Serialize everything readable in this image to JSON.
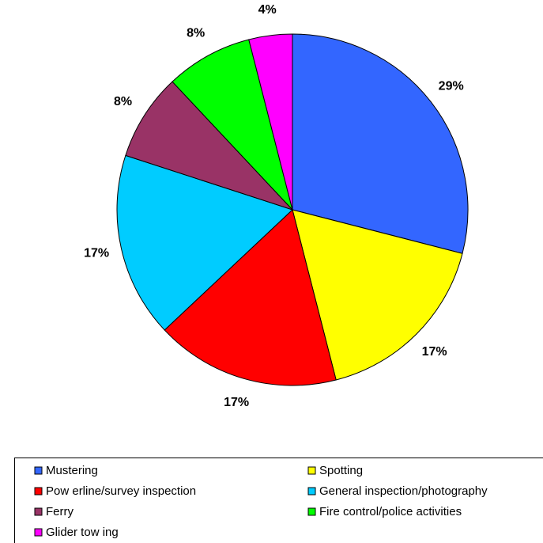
{
  "chart_data": {
    "type": "pie",
    "categories": [
      "Mustering",
      "Spotting",
      "Pow erline/survey inspection",
      "General inspection/photography",
      "Ferry",
      "Fire control/police activities",
      "Glider tow ing"
    ],
    "values": [
      29,
      17,
      17,
      17,
      8,
      8,
      4
    ],
    "value_labels": [
      "29%",
      "17%",
      "17%",
      "17%",
      "8%",
      "8%",
      "4%"
    ],
    "colors": [
      "#3366ff",
      "#ffff00",
      "#ff0000",
      "#00ccff",
      "#993366",
      "#00ff00",
      "#ff00ff"
    ],
    "legend": "bottom"
  }
}
